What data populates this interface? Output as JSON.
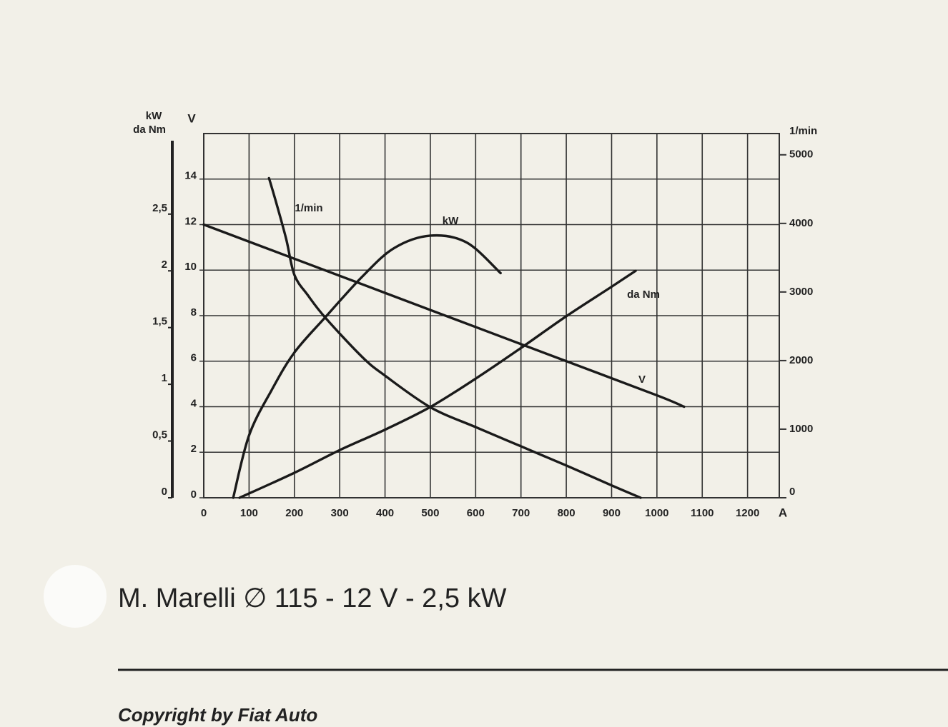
{
  "chart_data": {
    "type": "line",
    "title": "M. Marelli ∅ 115 - 12 V - 2,5 kW",
    "footer": "Copyright by Fiat Auto",
    "x_label": "A",
    "y_label": "V",
    "y2_label": "1/min",
    "y3_label": [
      "kW",
      "da Nm"
    ],
    "xlim": [
      0,
      1270
    ],
    "xticks": [
      0,
      100,
      200,
      300,
      400,
      500,
      600,
      700,
      800,
      900,
      1000,
      1100,
      1200
    ],
    "ylim": [
      0,
      16
    ],
    "yticks": [
      0,
      2,
      4,
      6,
      8,
      10,
      12,
      14
    ],
    "y2lim": [
      0,
      5310
    ],
    "y2ticks": [
      0,
      1000,
      2000,
      3000,
      4000,
      5000
    ],
    "y3lim": [
      0,
      3.21
    ],
    "y3ticks": [
      0,
      {
        "value": 0.5,
        "label": "0,5"
      },
      1,
      {
        "value": 1.5,
        "label": "1,5"
      },
      2,
      {
        "value": 2.5,
        "label": "2,5"
      }
    ],
    "grid": true,
    "series": [
      {
        "name": "1/min",
        "axis": "y2",
        "color": "#1a1a1a",
        "x": [
          144,
          160,
          182,
          200,
          230,
          269,
          350,
          400,
          500,
          600,
          700,
          800,
          900,
          964
        ],
        "values": [
          4660,
          4300,
          3770,
          3250,
          2950,
          2620,
          2050,
          1780,
          1320,
          1030,
          750,
          470,
          180,
          0
        ]
      },
      {
        "name": "kW",
        "axis": "y3",
        "color": "#1a1a1a",
        "x": [
          65,
          100,
          150,
          200,
          268,
          350,
          420,
          500,
          580,
          655
        ],
        "values": [
          0,
          0.55,
          0.95,
          1.28,
          1.59,
          1.95,
          2.2,
          2.31,
          2.25,
          1.98
        ]
      },
      {
        "name": "da Nm",
        "axis": "y3",
        "color": "#1a1a1a",
        "x": [
          79,
          200,
          300,
          400,
          500,
          600,
          700,
          800,
          900,
          953
        ],
        "values": [
          0,
          0.22,
          0.42,
          0.6,
          0.8,
          1.05,
          1.32,
          1.6,
          1.86,
          2.0
        ]
      },
      {
        "name": "V",
        "axis": "y",
        "color": "#1a1a1a",
        "x": [
          0,
          200,
          400,
          600,
          800,
          1000,
          1060
        ],
        "values": [
          12,
          10.5,
          9,
          7.5,
          6,
          4.5,
          4
        ]
      }
    ]
  }
}
